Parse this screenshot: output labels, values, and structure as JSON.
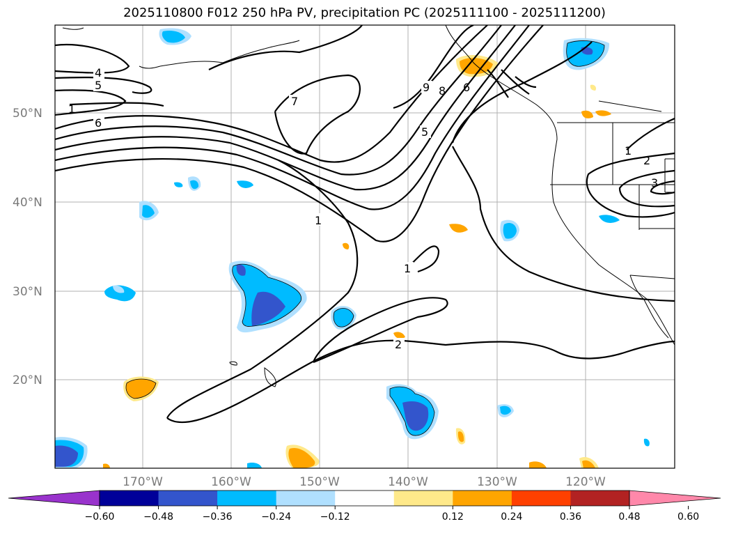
{
  "title": "2025110800 F012 250 hPa PV, precipitation PC (2025111100 - 2025111200)",
  "map": {
    "lat_labels": [
      "50°N",
      "40°N",
      "30°N",
      "20°N"
    ],
    "lon_labels": [
      "170°W",
      "160°W",
      "150°W",
      "140°W",
      "130°W",
      "120°W"
    ],
    "contour_labels": [
      "4",
      "5",
      "6",
      "1",
      "7",
      "9",
      "8",
      "6",
      "5",
      "1",
      "1",
      "1",
      "2",
      "2",
      "3"
    ]
  },
  "colorbar": {
    "ticks": [
      "−0.60",
      "−0.48",
      "−0.36",
      "−0.24",
      "−0.12",
      "0.12",
      "0.24",
      "0.36",
      "0.48",
      "0.60"
    ],
    "colors": [
      "#9933cc",
      "#000099",
      "#3355cc",
      "#00bbff",
      "#b0e0ff",
      "#ffffff",
      "#ffe98a",
      "#ffa500",
      "#ff4000",
      "#b22222",
      "#ff88aa"
    ]
  }
}
